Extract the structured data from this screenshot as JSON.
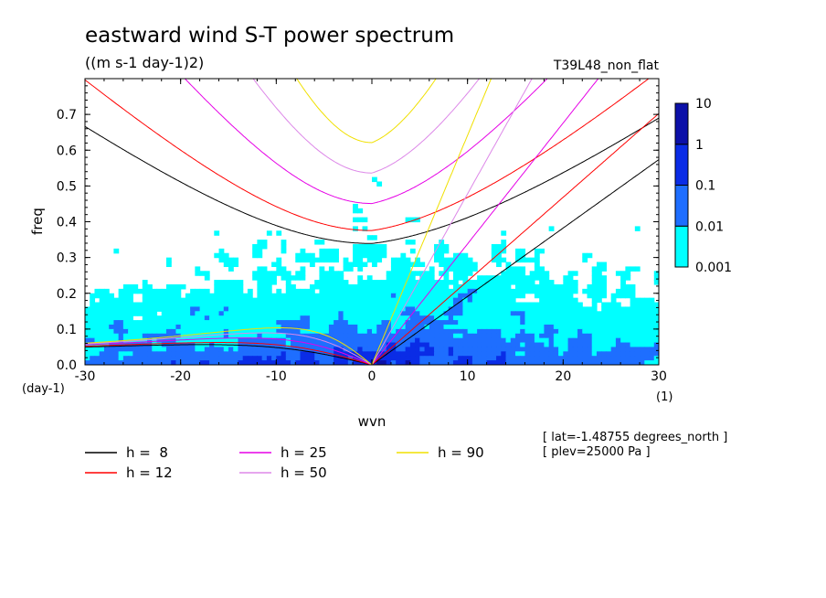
{
  "chart_data": {
    "type": "heatmap",
    "title": "eastward wind S-T power spectrum",
    "units": "((m s-1 day-1)2)",
    "run_label": "T39L48_non_flat",
    "xlabel": "wvn",
    "xunit": "(1)",
    "ylabel": "freq",
    "yunit": "(day-1)",
    "xlim": [
      -30,
      30
    ],
    "ylim": [
      0,
      0.8
    ],
    "x_ticks": [
      -30,
      -20,
      -10,
      0,
      10,
      20,
      30
    ],
    "x_tick_labels": [
      "-30",
      "-20",
      "-10",
      "0",
      "10",
      "20",
      "30"
    ],
    "y_ticks": [
      0,
      0.1,
      0.2,
      0.3,
      0.4,
      0.5,
      0.6,
      0.7
    ],
    "y_tick_labels": [
      "0.0",
      "0.1",
      "0.2",
      "0.3",
      "0.4",
      "0.5",
      "0.6",
      "0.7"
    ],
    "colorbar": {
      "levels": [
        0.001,
        0.01,
        0.1,
        1,
        10
      ],
      "labels": [
        "0.001",
        "0.01",
        "0.1",
        "1",
        "10"
      ],
      "colors": [
        "#00ffff",
        "#1e6eff",
        "#0a2ce6",
        "#0c10a8",
        "#5a1eb4"
      ],
      "below_min_color": "#ffffff"
    },
    "dispersion_curves": [
      {
        "label": "h =  8",
        "h": 8,
        "color": "#000000"
      },
      {
        "label": "h = 12",
        "h": 12,
        "color": "#ff0000"
      },
      {
        "label": "h = 25",
        "h": 25,
        "color": "#e600e6"
      },
      {
        "label": "h = 50",
        "h": 50,
        "color": "#dd88e8"
      },
      {
        "label": "h = 90",
        "h": 90,
        "color": "#f0e000"
      }
    ],
    "annotations": [
      "[ lat=-1.48755 degrees_north ]",
      "[ plev=25000 Pa ]"
    ]
  }
}
